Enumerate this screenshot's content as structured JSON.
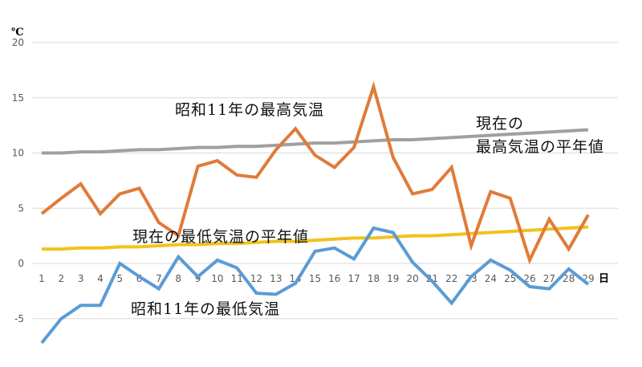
{
  "chart_data": {
    "type": "line",
    "title": "",
    "xlabel": "日",
    "ylabel": "℃",
    "ylim": [
      -7.5,
      20
    ],
    "yticks": [
      20,
      15,
      10,
      5,
      0,
      -5
    ],
    "grid": true,
    "legend_position": "inline annotations",
    "x": [
      1,
      2,
      3,
      4,
      5,
      6,
      7,
      8,
      9,
      10,
      11,
      12,
      13,
      14,
      15,
      16,
      17,
      18,
      19,
      20,
      21,
      22,
      23,
      24,
      25,
      26,
      27,
      28,
      29
    ],
    "series": [
      {
        "name": "昭和11年の最高気温",
        "color": "#E07B39",
        "values": [
          4.5,
          5.9,
          7.2,
          4.5,
          6.3,
          6.8,
          3.7,
          2.5,
          8.8,
          9.3,
          8.0,
          7.8,
          10.3,
          12.2,
          9.8,
          8.7,
          10.5,
          16.0,
          9.6,
          6.3,
          6.7,
          8.7,
          1.6,
          6.5,
          5.9,
          0.3,
          4.0,
          1.3,
          4.4
        ]
      },
      {
        "name": "現在の最高気温の平年値",
        "color": "#A0A0A0",
        "values": [
          10.0,
          10.0,
          10.1,
          10.1,
          10.2,
          10.3,
          10.3,
          10.4,
          10.5,
          10.5,
          10.6,
          10.6,
          10.7,
          10.8,
          10.9,
          10.9,
          11.0,
          11.1,
          11.2,
          11.2,
          11.3,
          11.4,
          11.5,
          11.6,
          11.7,
          11.8,
          11.9,
          12.0,
          12.1
        ]
      },
      {
        "name": "現在の最低気温の平年値",
        "color": "#F2C21B",
        "values": [
          1.3,
          1.3,
          1.4,
          1.4,
          1.5,
          1.5,
          1.6,
          1.7,
          1.7,
          1.8,
          1.8,
          1.9,
          2.0,
          2.0,
          2.1,
          2.2,
          2.3,
          2.3,
          2.4,
          2.5,
          2.5,
          2.6,
          2.7,
          2.8,
          2.9,
          3.0,
          3.1,
          3.2,
          3.3
        ]
      },
      {
        "name": "昭和11年の最低気温",
        "color": "#5B9BD5",
        "values": [
          -7.2,
          -5.0,
          -3.8,
          -3.8,
          0.0,
          -1.2,
          -2.3,
          0.6,
          -1.2,
          0.3,
          -0.4,
          -2.7,
          -2.8,
          -1.8,
          1.1,
          1.4,
          0.4,
          3.2,
          2.8,
          0.1,
          -1.6,
          -3.6,
          -1.2,
          0.3,
          -0.6,
          -2.1,
          -2.3,
          -0.5,
          -1.9
        ]
      }
    ],
    "annotations": [
      {
        "text": "昭和11年の最高気温",
        "series": 0
      },
      {
        "text": "現在の\n最高気温の平年値",
        "series": 1
      },
      {
        "text": "現在の最低気温の平年値",
        "series": 2
      },
      {
        "text": "昭和11年の最低気温",
        "series": 3
      }
    ]
  },
  "labels": {
    "unit": "℃",
    "day": "日",
    "ann_max_1936": "昭和11年の最高気温",
    "ann_max_normal_1": "現在の",
    "ann_max_normal_2": "最高気温の平年値",
    "ann_min_normal": "現在の最低気温の平年値",
    "ann_min_1936": "昭和11年の最低気温"
  }
}
